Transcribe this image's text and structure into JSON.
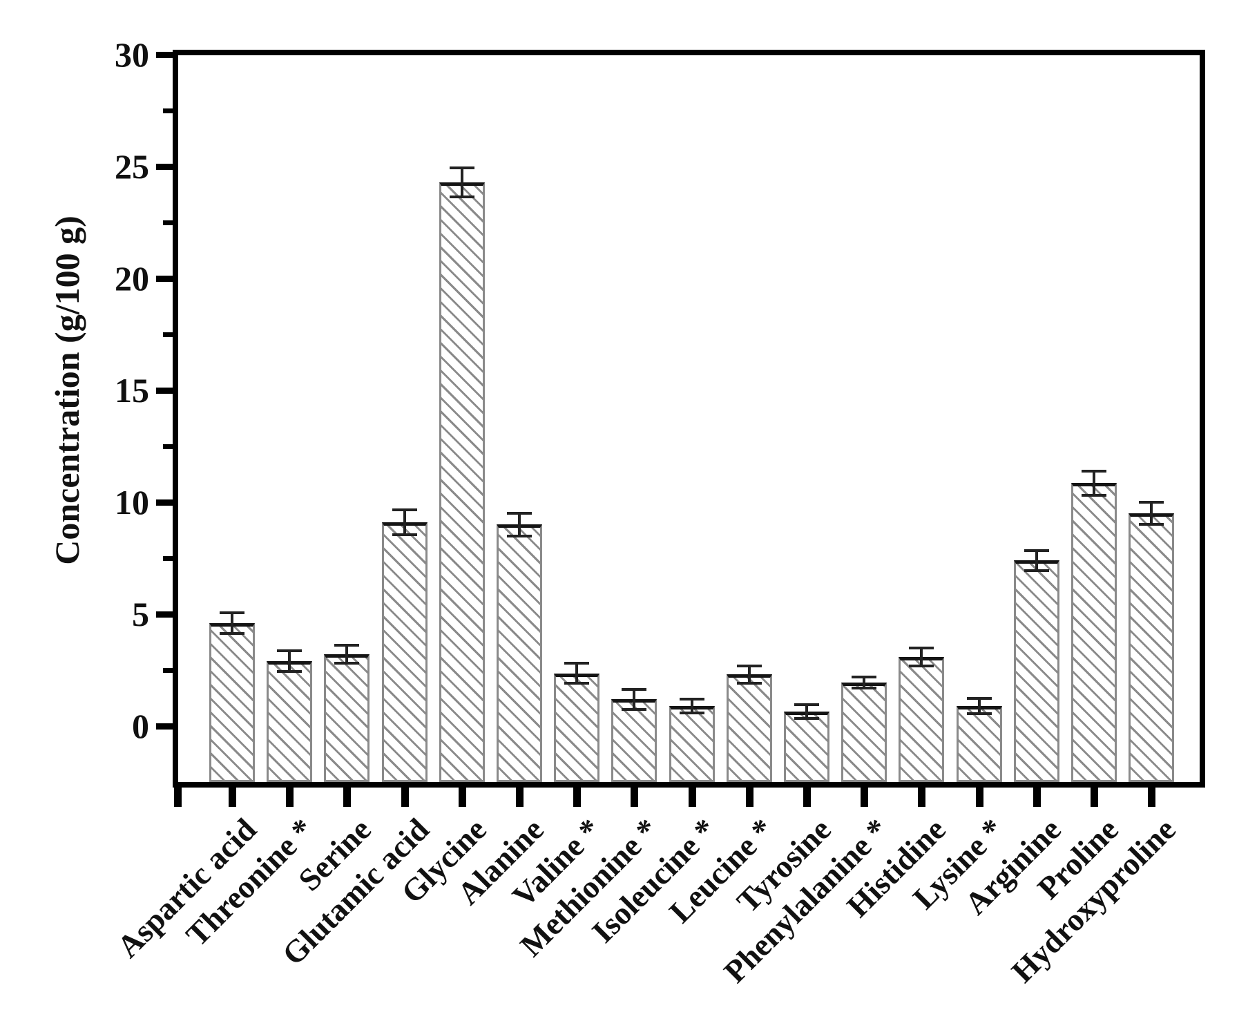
{
  "page": {
    "background": "#ffffff",
    "text_color": "#111111"
  },
  "chart_data": {
    "type": "bar",
    "title": "",
    "ylabel": "Concentration (g/100 g)",
    "xlabel": "",
    "ylim": [
      0,
      30
    ],
    "yticks_major": [
      0,
      5,
      10,
      15,
      20,
      25,
      30
    ],
    "yticks_minor": [
      2.5,
      7.5,
      12.5,
      17.5,
      22.5,
      27.5
    ],
    "grid": false,
    "legend": null,
    "bar_style": {
      "fill": "#ffffff",
      "hatch": "diagonal-backslash",
      "hatch_color": "#8a8a8a",
      "border_color": "#8a8a8a",
      "top_edge_color": "#141414",
      "error_bar_color": "#222222"
    },
    "categories": [
      "Aspartic acid",
      "Threonine *",
      "Serine",
      "Glutamic acid",
      "Glycine",
      "Alanine",
      "Valine *",
      "Methionine *",
      "Isoleucine *",
      "Leucine *",
      "Tyrosine",
      "Phenylalanine *",
      "Histidine",
      "Lysine *",
      "Arginine",
      "Proline",
      "Hydroxyproline"
    ],
    "values": [
      4.6,
      2.9,
      3.2,
      9.1,
      24.3,
      9.0,
      2.35,
      1.2,
      0.9,
      2.3,
      0.65,
      1.95,
      3.1,
      0.9,
      7.4,
      10.85,
      9.5
    ],
    "errors": [
      0.45,
      0.45,
      0.4,
      0.55,
      0.65,
      0.5,
      0.45,
      0.45,
      0.3,
      0.4,
      0.3,
      0.25,
      0.4,
      0.35,
      0.45,
      0.55,
      0.5
    ]
  }
}
